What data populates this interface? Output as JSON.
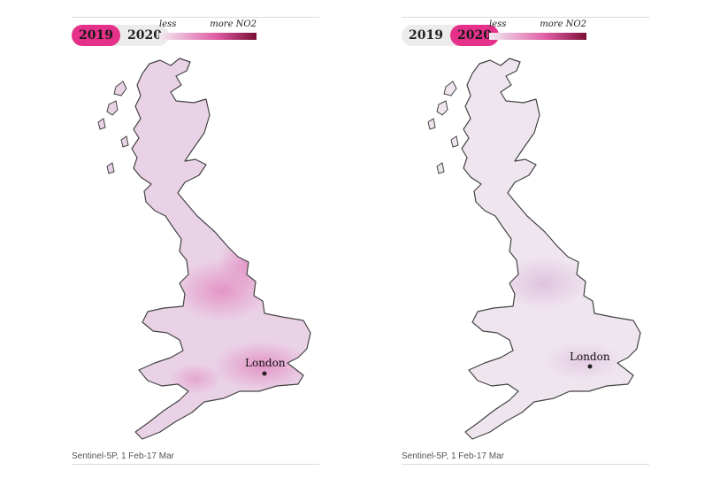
{
  "colors": {
    "accent": "#e6318a",
    "legend_low": "#f3eaf1",
    "legend_mid": "#de5aa3",
    "legend_high": "#7a0f33",
    "land_2019": "#ead2e6",
    "land_2020": "#efe5ef",
    "hotspot_2019": "#e39bc9",
    "hotspot_2020": "#e4cbe2",
    "coastline": "#444444"
  },
  "legend": {
    "less": "less",
    "more": "more NO2"
  },
  "city": {
    "name": "London"
  },
  "panels": [
    {
      "years": [
        "2019",
        "2020"
      ],
      "selected": "2019",
      "caption": "Sentinel-5P, 1 Feb-17 Mar"
    },
    {
      "years": [
        "2019",
        "2020"
      ],
      "selected": "2020",
      "caption": "Sentinel-5P, 1 Feb-17 Mar"
    }
  ]
}
